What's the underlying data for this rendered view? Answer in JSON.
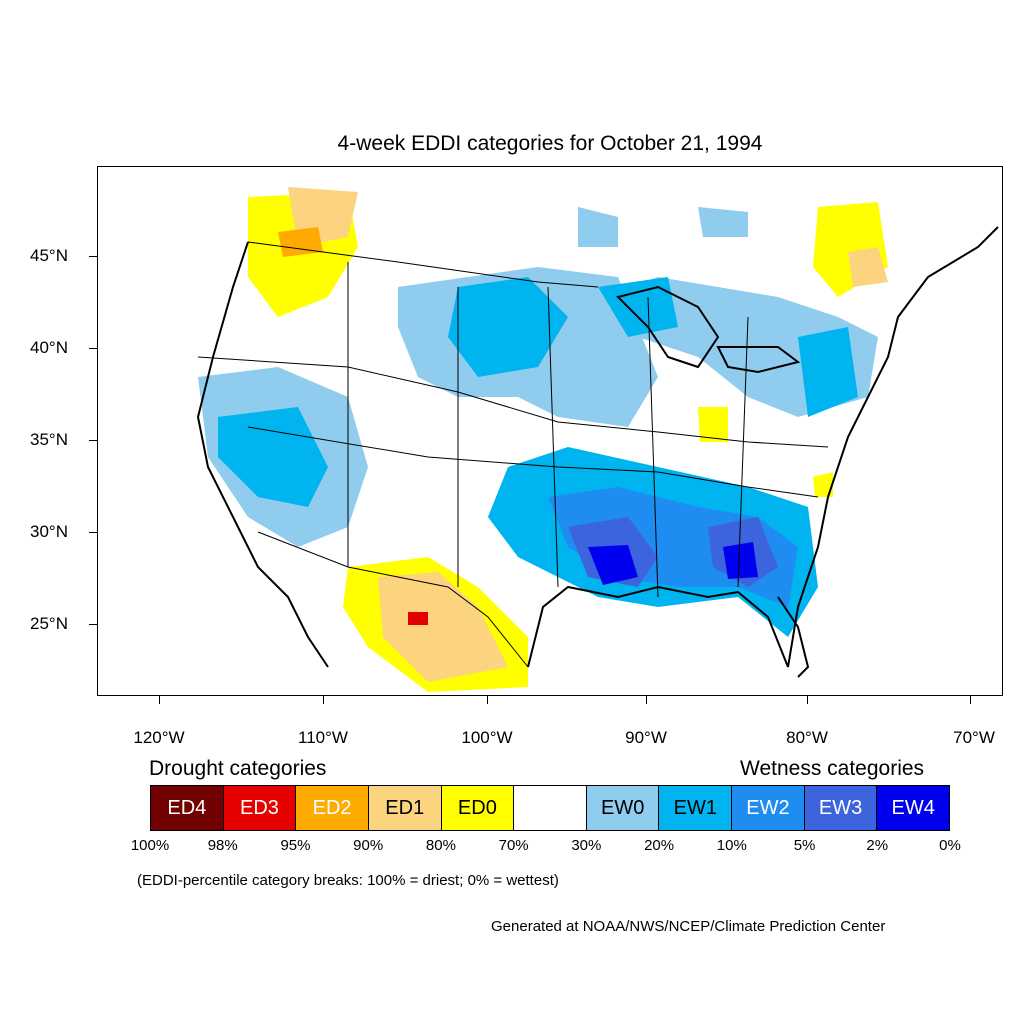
{
  "title": "4-week EDDI categories for October 21, 1994",
  "lat_labels": [
    "45°N",
    "40°N",
    "35°N",
    "30°N",
    "25°N"
  ],
  "lon_labels": [
    "120°W",
    "110°W",
    "100°W",
    "90°W",
    "80°W",
    "70°W"
  ],
  "legend": {
    "drought_heading": "Drought categories",
    "wetness_heading": "Wetness categories",
    "categories": [
      {
        "label": "ED4",
        "color": "#730000",
        "text_color": "#ffffff"
      },
      {
        "label": "ED3",
        "color": "#e60000",
        "text_color": "#ffffff"
      },
      {
        "label": "ED2",
        "color": "#ffaa00",
        "text_color": "#ffffff"
      },
      {
        "label": "ED1",
        "color": "#fcd37f",
        "text_color": "#000000"
      },
      {
        "label": "ED0",
        "color": "#ffff00",
        "text_color": "#000000"
      },
      {
        "label": "",
        "color": "#ffffff",
        "text_color": "#000000"
      },
      {
        "label": "EW0",
        "color": "#8fccee",
        "text_color": "#000000"
      },
      {
        "label": "EW1",
        "color": "#00b4f0",
        "text_color": "#000000"
      },
      {
        "label": "EW2",
        "color": "#1e8cf0",
        "text_color": "#ffffff"
      },
      {
        "label": "EW3",
        "color": "#3c64dc",
        "text_color": "#ffffff"
      },
      {
        "label": "EW4",
        "color": "#0000f0",
        "text_color": "#ffffff"
      }
    ],
    "breaks": [
      "100%",
      "98%",
      "95%",
      "90%",
      "80%",
      "70%",
      "30%",
      "20%",
      "10%",
      "5%",
      "2%",
      "0%"
    ],
    "note": "(EDDI-percentile category breaks: 100% = driest; 0% = wettest)"
  },
  "credit": "Generated at NOAA/NWS/NCEP/Climate Prediction Center"
}
